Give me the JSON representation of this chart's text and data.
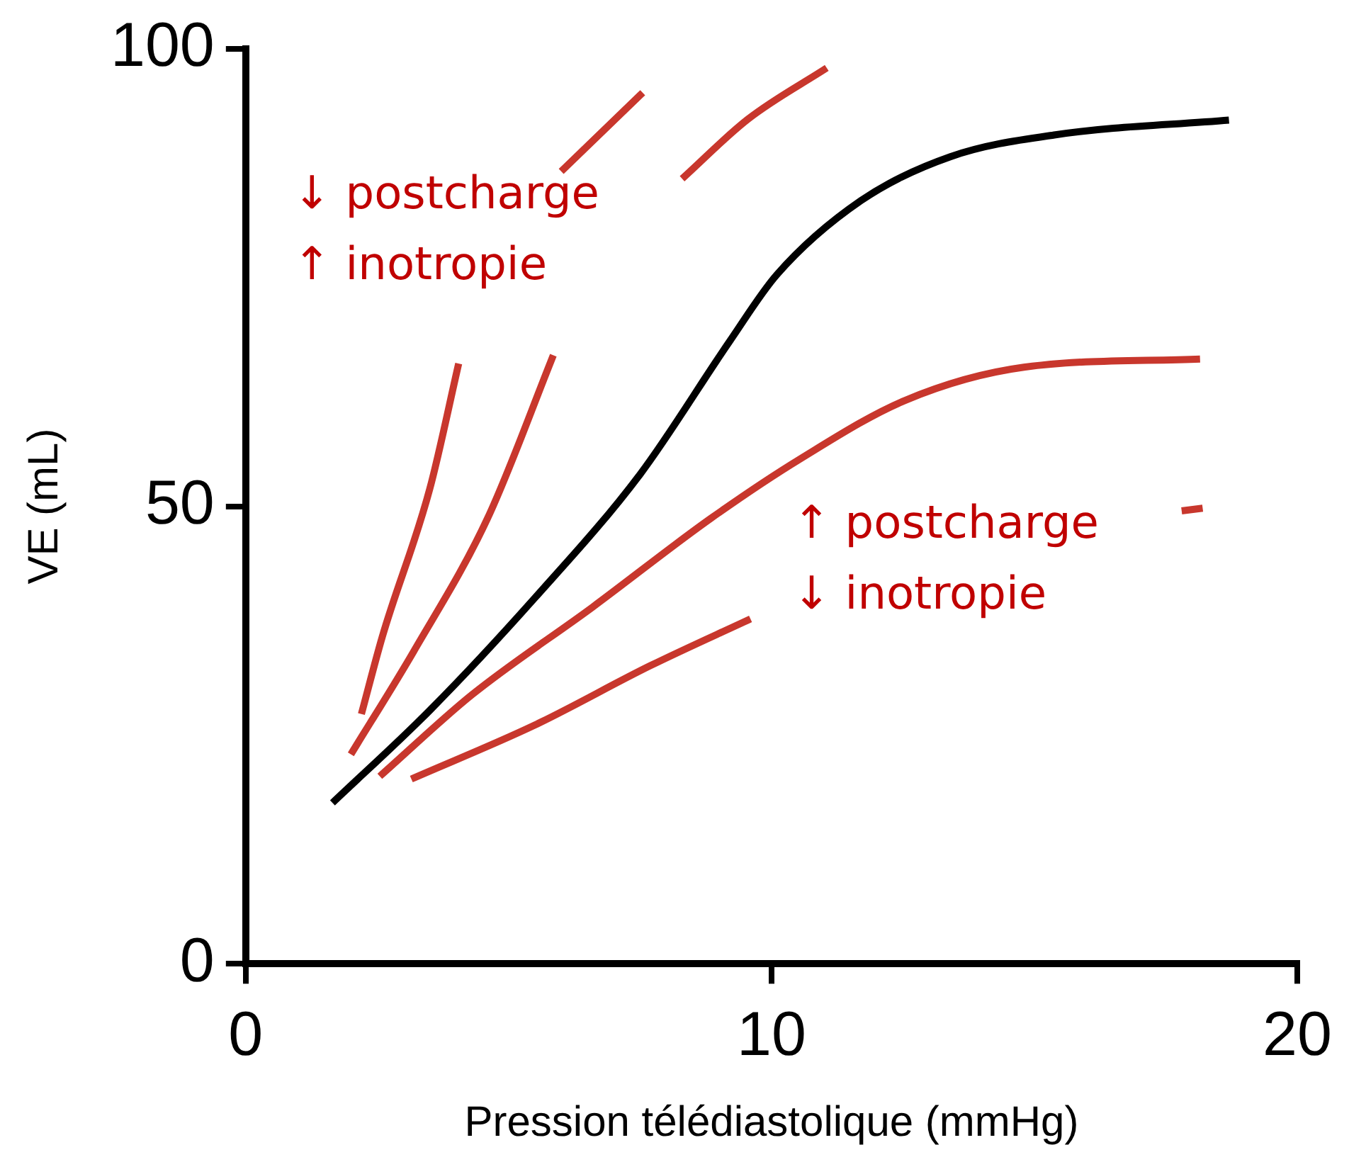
{
  "chart_data": {
    "type": "line",
    "xlabel": "Pression télédiastolique (mmHg)",
    "ylabel": "VE (mL)",
    "xlim": [
      0,
      20
    ],
    "xticks": [
      0,
      10,
      20
    ],
    "ylim": [
      0,
      100
    ],
    "yticks": [
      0,
      50,
      100
    ],
    "grid": false,
    "legend": false,
    "marker": "none",
    "line_style": "solid",
    "series": [
      {
        "color": "#000000",
        "x": [
          1.65,
          3.5,
          5.5,
          7.5,
          9.2,
          10.1,
          11.7,
          13.4,
          15.4,
          18.7
        ],
        "values": [
          17.6,
          27.7,
          40,
          53.5,
          68,
          75.3,
          83.4,
          88.2,
          90.6,
          92.2
        ]
      },
      {
        "color": "#c8372d",
        "x": [
          2.2,
          2.6,
          3.5,
          4.05,
          5.0,
          6.0,
          7.55
        ],
        "values": [
          27.3,
          35.8,
          51.9,
          65.6,
          null,
          86.6,
          95.2
        ]
      },
      {
        "color": "#c8372d",
        "x": [
          2.0,
          3.2,
          4.6,
          5.85,
          7.0,
          8.3,
          9.55,
          11.05
        ],
        "values": [
          22.9,
          34.2,
          48.7,
          66.5,
          null,
          85.8,
          92.3,
          97.9
        ]
      },
      {
        "color": "#c8372d",
        "x": [
          2.55,
          4.3,
          6.6,
          8.85,
          10.55,
          12.55,
          14.8,
          18.15
        ],
        "values": [
          20.5,
          29.4,
          39,
          48.7,
          55.2,
          61.6,
          65.2,
          66.1
        ]
      },
      {
        "color": "#c8372d",
        "x": [
          3.15,
          5.5,
          7.7,
          9.6,
          14.0,
          17.8,
          18.2
        ],
        "values": [
          20.2,
          26.1,
          32.6,
          37.7,
          null,
          49.5,
          49.8
        ]
      }
    ],
    "annotations": [
      "↓ postcharge\n↑ inotropie",
      "↑ postcharge\n↓ inotropie"
    ]
  }
}
